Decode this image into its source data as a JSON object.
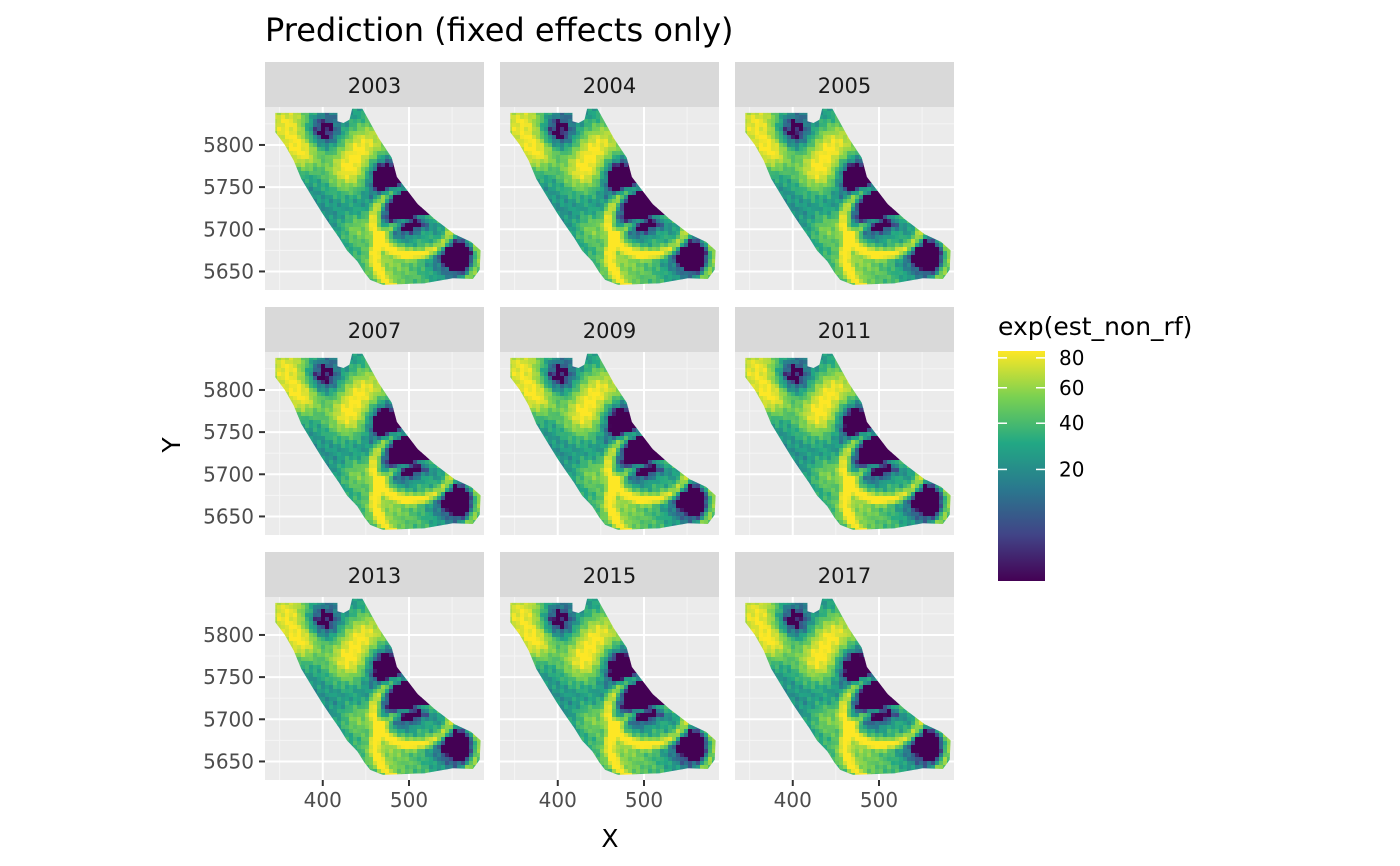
{
  "chart_data": {
    "type": "heatmap",
    "title": "Prediction (fixed effects only)",
    "xlabel": "X",
    "ylabel": "Y",
    "facets": [
      "2003",
      "2004",
      "2005",
      "2007",
      "2009",
      "2011",
      "2013",
      "2015",
      "2017"
    ],
    "x_ticks": [
      400,
      500
    ],
    "y_ticks": [
      5650,
      5700,
      5750,
      5800
    ],
    "xlim": [
      333,
      587
    ],
    "ylim": [
      5628,
      5845
    ],
    "grid": true,
    "legend": {
      "title": "exp(est_non_rf)",
      "placement": "right",
      "ticks": [
        20,
        40,
        60,
        80
      ],
      "range": [
        0,
        85
      ],
      "scale": "sqrt",
      "palette": [
        "#440154",
        "#414487",
        "#2A788E",
        "#22A884",
        "#7AD151",
        "#FDE725"
      ]
    }
  }
}
